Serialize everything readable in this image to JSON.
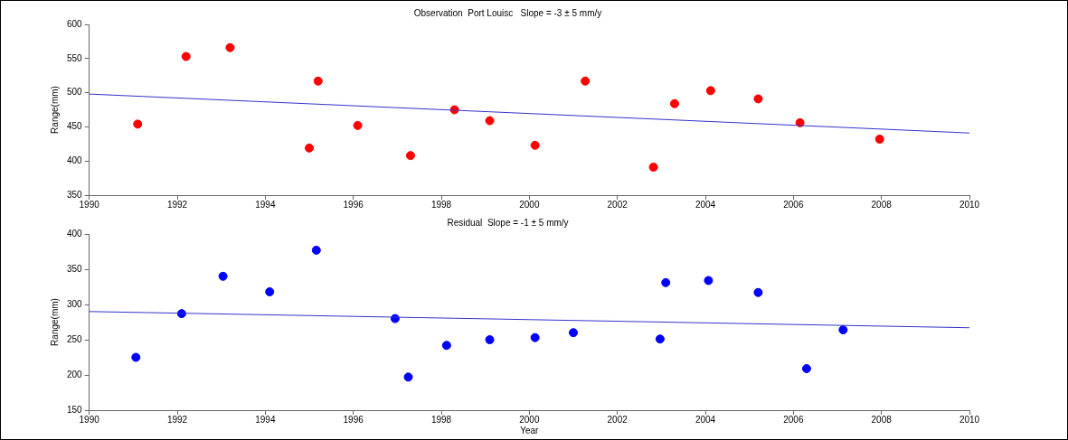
{
  "chart_data": [
    {
      "type": "scatter",
      "title": "Observation  Port Louisc   Slope = -3 ± 5 mm/y",
      "ylabel": "Range(mm)",
      "xlim": [
        1990,
        2010
      ],
      "xticks": [
        1990,
        1992,
        1994,
        1996,
        1998,
        2000,
        2002,
        2004,
        2006,
        2008,
        2010
      ],
      "ylim": [
        350,
        600
      ],
      "yticks": [
        350,
        400,
        450,
        500,
        550,
        600
      ],
      "grid": false,
      "series": [
        {
          "marker": "circle",
          "color": "#ff0000",
          "x": [
            1991.1,
            1992.2,
            1993.2,
            1995.0,
            1995.2,
            1996.1,
            1997.3,
            1998.3,
            1999.1,
            2000.13,
            2001.27,
            2002.82,
            2003.3,
            2004.12,
            2005.2,
            2006.15,
            2007.96
          ],
          "values": [
            454,
            553,
            566,
            419,
            517,
            452,
            408,
            475,
            459,
            423,
            517,
            391,
            484,
            503,
            491,
            456,
            432
          ]
        },
        {
          "type": "line",
          "marker": "none",
          "color": "#3333cc",
          "x": [
            1990,
            2010
          ],
          "values": [
            498,
            441
          ]
        }
      ]
    },
    {
      "type": "scatter",
      "title": "Residual  Slope = -1 ± 5 mm/y",
      "xlabel": "Year",
      "ylabel": "Range(mm)",
      "xlim": [
        1990,
        2010
      ],
      "xticks": [
        1990,
        1992,
        1994,
        1996,
        1998,
        2000,
        2002,
        2004,
        2006,
        2008,
        2010
      ],
      "ylim": [
        150,
        400
      ],
      "yticks": [
        150,
        200,
        250,
        300,
        350,
        400
      ],
      "grid": false,
      "series": [
        {
          "marker": "circle",
          "color": "#0000ff",
          "x": [
            1991.06,
            1992.1,
            1993.04,
            1994.1,
            1995.16,
            1996.95,
            1997.25,
            1998.12,
            1999.1,
            2000.13,
            2001.0,
            2002.97,
            2003.1,
            2004.07,
            2005.2,
            2006.3,
            2007.13
          ],
          "values": [
            225,
            287,
            340,
            318,
            377,
            280,
            197,
            242,
            250,
            253,
            260,
            251,
            331,
            334,
            317,
            209,
            264
          ]
        },
        {
          "type": "line",
          "marker": "none",
          "color": "#3333cc",
          "x": [
            1990,
            2010
          ],
          "values": [
            290,
            267
          ]
        }
      ]
    }
  ]
}
